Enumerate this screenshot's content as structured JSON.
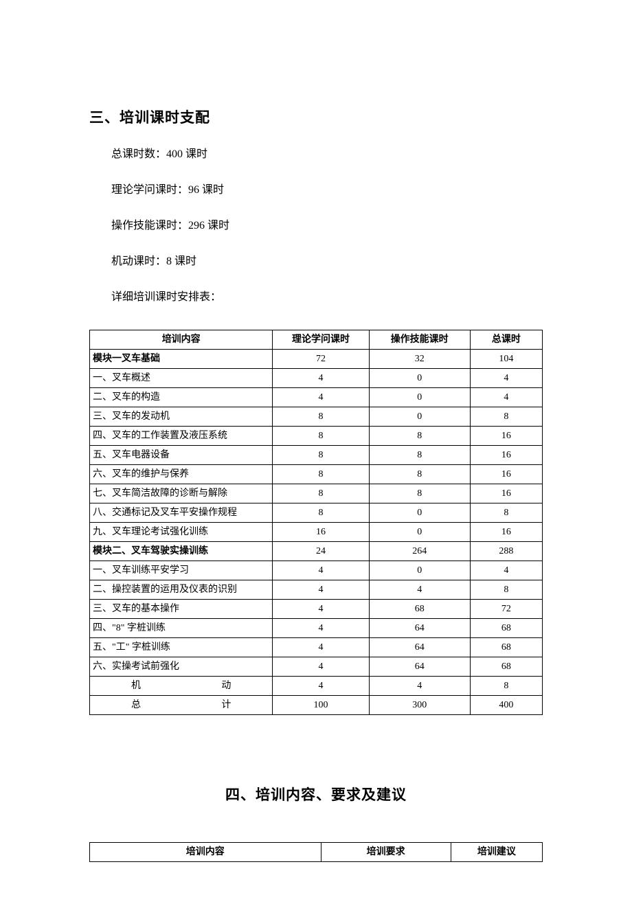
{
  "section3": {
    "heading": "三、培训课时支配",
    "lines": [
      "总课时数：400 课时",
      "理论学问课时：96 课时",
      "操作技能课时：296 课时",
      "机动课时：8 课时",
      "详细培训课时安排表："
    ]
  },
  "table1": {
    "type": "table",
    "columns": [
      "培训内容",
      "理论学问课时",
      "操作技能课时",
      "总课时"
    ],
    "column_widths_pct": [
      38,
      20,
      21,
      15
    ],
    "border_color": "#000000",
    "background_color": "#ffffff",
    "header_fontweight": "bold",
    "fontsize": 14,
    "rows": [
      {
        "label": "模块一叉车基础",
        "theory": "72",
        "practice": "32",
        "total": "104",
        "bold": true
      },
      {
        "label": "一、叉车概述",
        "theory": "4",
        "practice": "0",
        "total": "4",
        "bold": false
      },
      {
        "label": "二、叉车的构造",
        "theory": "4",
        "practice": "0",
        "total": "4",
        "bold": false
      },
      {
        "label": "三、叉车的发动机",
        "theory": "8",
        "practice": "0",
        "total": "8",
        "bold": false
      },
      {
        "label": "四、叉车的工作装置及液压系统",
        "theory": "8",
        "practice": "8",
        "total": "16",
        "bold": false
      },
      {
        "label": "五、叉车电器设备",
        "theory": "8",
        "practice": "8",
        "total": "16",
        "bold": false
      },
      {
        "label": "六、叉车的维护与保养",
        "theory": "8",
        "practice": "8",
        "total": "16",
        "bold": false
      },
      {
        "label": "七、叉车简洁故障的诊断与解除",
        "theory": "8",
        "practice": "8",
        "total": "16",
        "bold": false
      },
      {
        "label": "八、交通标记及叉车平安操作规程",
        "theory": "8",
        "practice": "0",
        "total": "8",
        "bold": false
      },
      {
        "label": "九、叉车理论考试强化训练",
        "theory": "16",
        "practice": "0",
        "total": "16",
        "bold": false
      },
      {
        "label": "模块二、叉车驾驶实操训练",
        "theory": "24",
        "practice": "264",
        "total": "288",
        "bold": true
      },
      {
        "label": "一、叉车训练平安学习",
        "theory": "4",
        "practice": "0",
        "total": "4",
        "bold": false
      },
      {
        "label": "二、操控装置的运用及仪表的识别",
        "theory": "4",
        "practice": "4",
        "total": "8",
        "bold": false
      },
      {
        "label": "三、叉车的基本操作",
        "theory": "4",
        "practice": "68",
        "total": "72",
        "bold": false
      },
      {
        "label": "四、\"8\" 字桩训练",
        "theory": "4",
        "practice": "64",
        "total": "68",
        "bold": false
      },
      {
        "label": "五、\"工\" 字桩训练",
        "theory": "4",
        "practice": "64",
        "total": "68",
        "bold": false
      },
      {
        "label": "六、实操考试前强化",
        "theory": "4",
        "practice": "64",
        "total": "68",
        "bold": false
      }
    ],
    "footer_rows": [
      {
        "label": "机　　　　　动",
        "theory": "4",
        "practice": "4",
        "total": "8"
      },
      {
        "label": "总　　　　　计",
        "theory": "100",
        "practice": "300",
        "total": "400"
      }
    ]
  },
  "section4": {
    "heading": "四、培训内容、要求及建议"
  },
  "table2": {
    "type": "table",
    "columns": [
      "培训内容",
      "培训要求",
      "培训建议"
    ],
    "column_widths_pct": [
      48,
      27,
      19
    ],
    "border_color": "#000000",
    "background_color": "#ffffff",
    "header_fontweight": "bold",
    "fontsize": 14
  }
}
